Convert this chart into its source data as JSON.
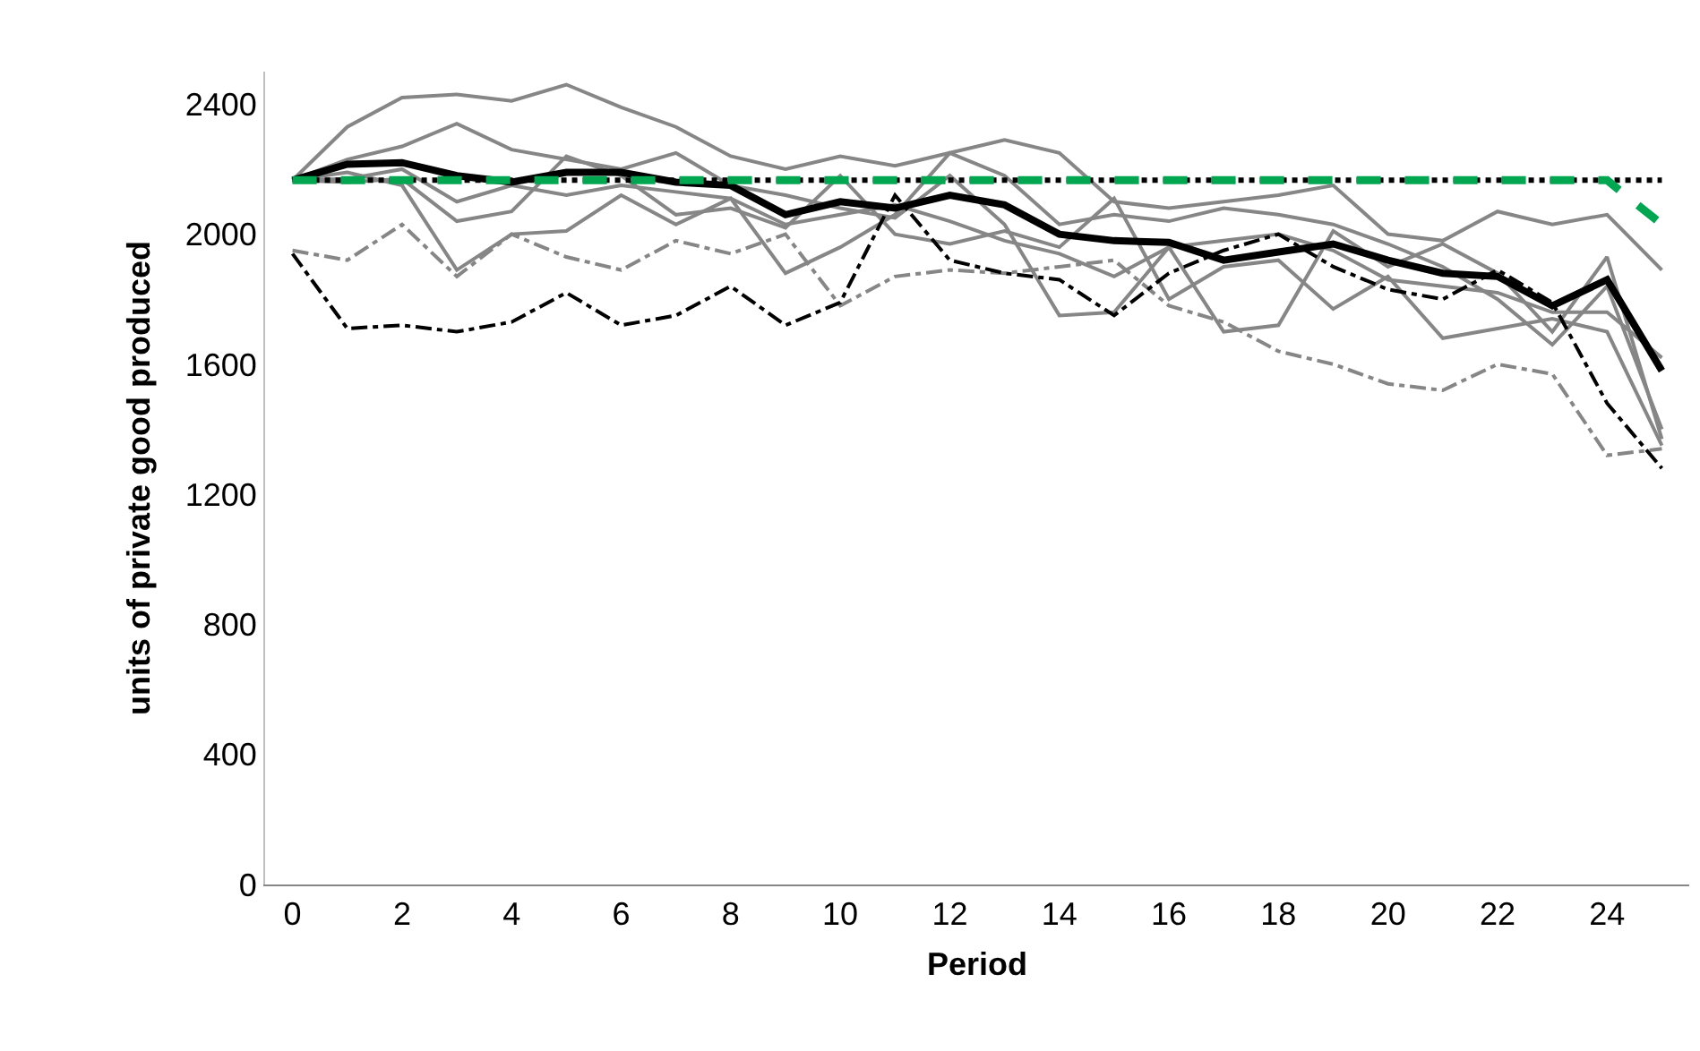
{
  "chart_data": {
    "type": "line",
    "xlabel": "Period",
    "ylabel": "units of private good produced",
    "x": [
      0,
      1,
      2,
      3,
      4,
      5,
      6,
      7,
      8,
      9,
      10,
      11,
      12,
      13,
      14,
      15,
      16,
      17,
      18,
      19,
      20,
      21,
      22,
      23,
      24,
      25
    ],
    "xlim": [
      -0.5,
      25.5
    ],
    "xticks": [
      0,
      2,
      4,
      6,
      8,
      10,
      12,
      14,
      16,
      18,
      20,
      22,
      24
    ],
    "ylim": [
      0,
      2500
    ],
    "yticks": [
      0,
      400,
      800,
      1200,
      1600,
      2000,
      2400
    ],
    "grid": false,
    "marker": "none",
    "series": [
      {
        "color": "#868686",
        "line_style": "solid",
        "values": [
          2166,
          2330,
          2420,
          2430,
          2410,
          2460,
          2390,
          2330,
          2240,
          2200,
          2240,
          2210,
          2250,
          2290,
          2250,
          2100,
          2080,
          2100,
          2120,
          2150,
          2000,
          1980,
          2070,
          2030,
          2060,
          1890
        ]
      },
      {
        "color": "#868686",
        "line_style": "solid",
        "values": [
          2166,
          2230,
          2270,
          2340,
          2260,
          2230,
          2200,
          2250,
          2150,
          2120,
          2080,
          2050,
          2180,
          2030,
          1750,
          1760,
          1960,
          1700,
          1720,
          2010,
          1900,
          1970,
          1880,
          1700,
          1930,
          1370
        ]
      },
      {
        "color": "#868686",
        "line_style": "solid",
        "values": [
          2166,
          2190,
          2150,
          1890,
          2000,
          2010,
          2120,
          2030,
          2110,
          1880,
          1960,
          2060,
          2250,
          2180,
          2030,
          2060,
          2040,
          2080,
          2060,
          2030,
          1970,
          1900,
          1800,
          1660,
          1840,
          1400
        ]
      },
      {
        "color": "#868686",
        "line_style": "solid",
        "values": [
          2166,
          2160,
          2170,
          2040,
          2070,
          2240,
          2180,
          2060,
          2080,
          2020,
          2180,
          2000,
          1970,
          2010,
          1960,
          2110,
          1800,
          1900,
          1920,
          1770,
          1870,
          1680,
          1710,
          1740,
          1700,
          1350
        ]
      },
      {
        "color": "#868686",
        "line_style": "solid",
        "values": [
          2166,
          2170,
          2200,
          2100,
          2150,
          2120,
          2150,
          2130,
          2110,
          2030,
          2060,
          2090,
          2040,
          1980,
          1940,
          1870,
          1960,
          1980,
          2000,
          1950,
          1860,
          1840,
          1820,
          1760,
          1760,
          1620
        ]
      },
      {
        "color": "#868686",
        "line_style": "dashdot",
        "values": [
          1950,
          1920,
          2030,
          1870,
          2000,
          1930,
          1890,
          1980,
          1940,
          2000,
          1780,
          1870,
          1890,
          1880,
          1900,
          1920,
          1780,
          1730,
          1640,
          1600,
          1540,
          1520,
          1600,
          1570,
          1320,
          1340
        ]
      },
      {
        "color": "#000000",
        "line_style": "dashdot",
        "values": [
          1940,
          1710,
          1720,
          1700,
          1730,
          1820,
          1720,
          1750,
          1840,
          1720,
          1790,
          2120,
          1920,
          1880,
          1860,
          1750,
          1880,
          1950,
          2000,
          1900,
          1830,
          1800,
          1890,
          1790,
          1480,
          1280
        ]
      },
      {
        "color": "#000000",
        "line_style": "solid",
        "values": [
          2166,
          2215,
          2220,
          2180,
          2160,
          2190,
          2190,
          2160,
          2150,
          2060,
          2100,
          2080,
          2120,
          2090,
          2000,
          1980,
          1975,
          1920,
          1945,
          1970,
          1920,
          1880,
          1870,
          1780,
          1860,
          1580
        ]
      },
      {
        "color": "#000000",
        "line_style": "dotted",
        "values": [
          2166,
          2166,
          2166,
          2166,
          2166,
          2166,
          2166,
          2166,
          2166,
          2166,
          2166,
          2166,
          2166,
          2166,
          2166,
          2166,
          2166,
          2166,
          2166,
          2166,
          2166,
          2166,
          2166,
          2166,
          2166,
          2166
        ]
      },
      {
        "color": "#00a650",
        "line_style": "dashed",
        "values": [
          2166,
          2166,
          2166,
          2166,
          2166,
          2166,
          2166,
          2166,
          2166,
          2166,
          2166,
          2166,
          2166,
          2166,
          2166,
          2166,
          2166,
          2166,
          2166,
          2166,
          2166,
          2166,
          2166,
          2166,
          2166,
          2030
        ]
      }
    ]
  }
}
